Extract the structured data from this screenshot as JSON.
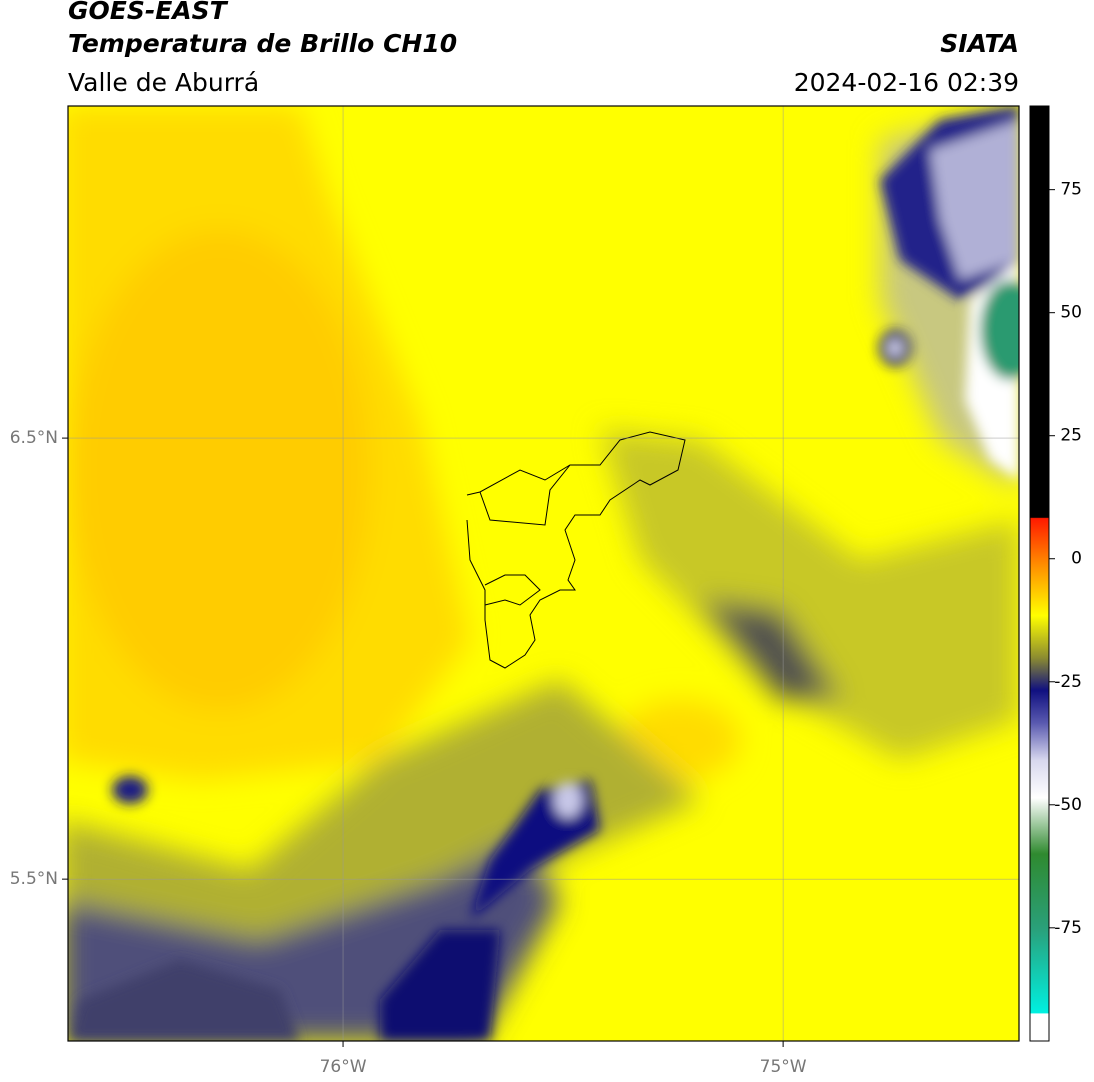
{
  "header": {
    "title": "GOES-EAST",
    "subtitle": "Temperatura de Brillo CH10",
    "region": "Valle de Aburrá",
    "source": "SIATA",
    "timestamp": "2024-02-16 02:39"
  },
  "map": {
    "lat_range": [
      5.133,
      7.253
    ],
    "lon_range": [
      -76.625,
      -74.464
    ],
    "lat_ticks": [
      {
        "value": 6.5,
        "label": "6.5°N"
      },
      {
        "value": 5.5,
        "label": "5.5°N"
      }
    ],
    "lon_ticks": [
      {
        "value": -76,
        "label": "76°W"
      },
      {
        "value": -75,
        "label": "75°W"
      }
    ],
    "grid": true
  },
  "colorbar": {
    "range": [
      -98,
      92
    ],
    "ticks": [
      75,
      50,
      25,
      0,
      -25,
      -50,
      -75
    ]
  }
}
